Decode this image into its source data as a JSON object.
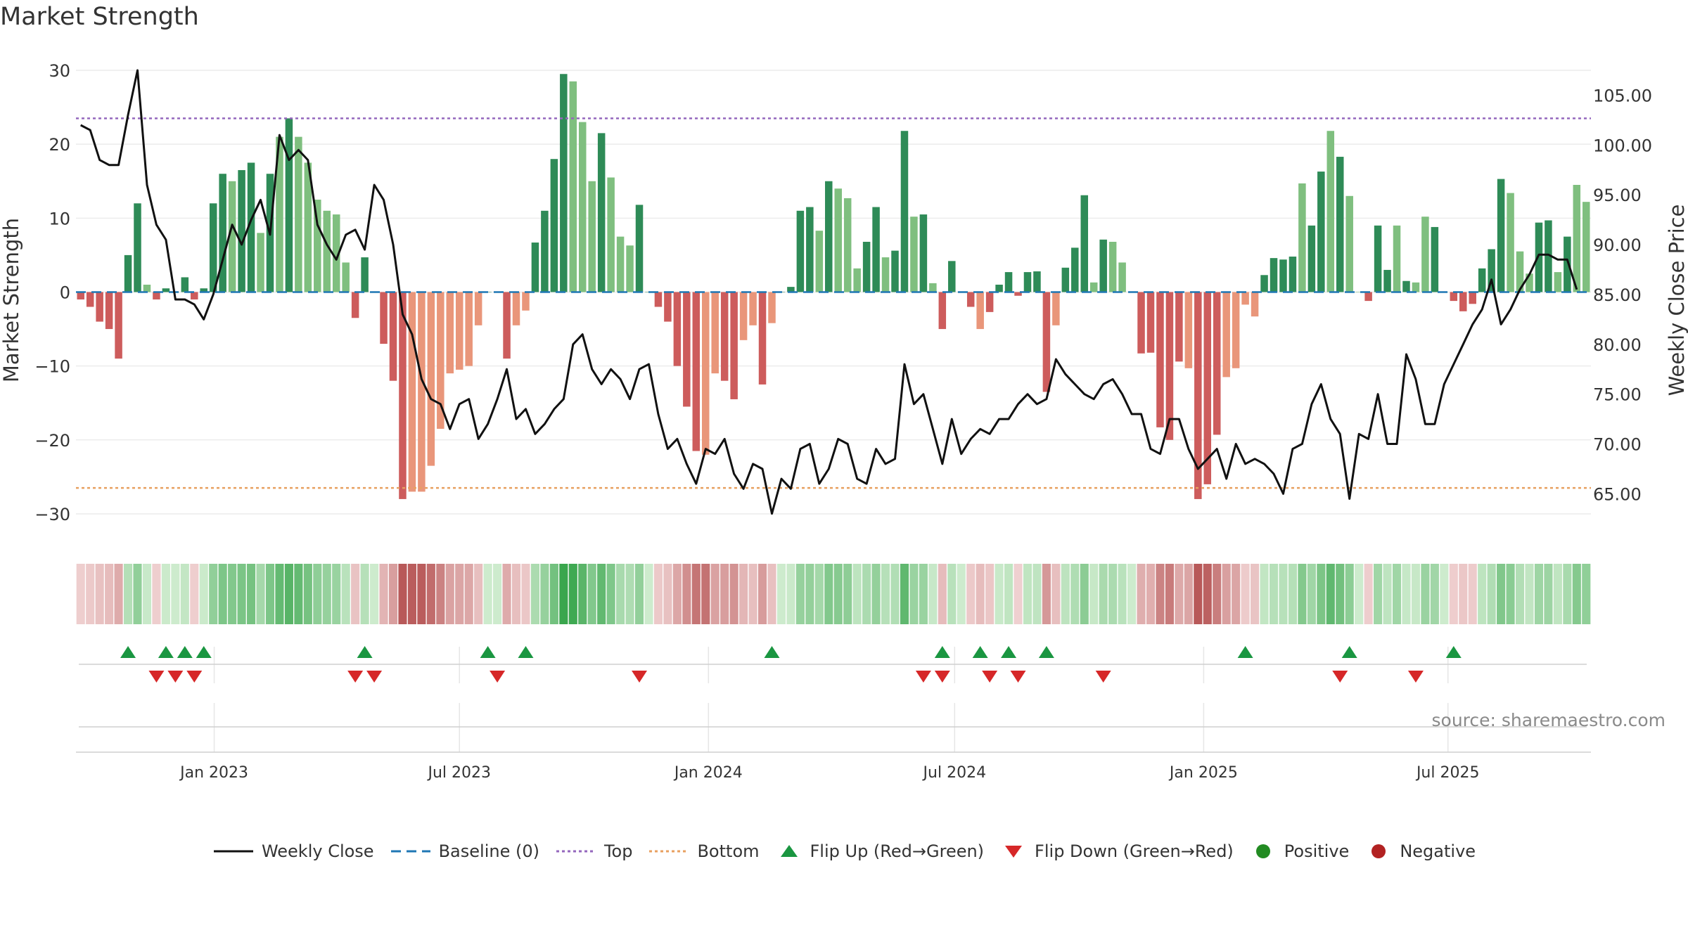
{
  "title": "Market Strength",
  "source": "source: sharemaestro.com",
  "colors": {
    "pos_dark": "#2e8b57",
    "pos_light": "#7fbf7f",
    "neg_dark": "#cd5c5c",
    "neg_light": "#e9967a",
    "price": "#111111",
    "baseline": "#1f77b4",
    "top": "#9467bd",
    "bottom": "#e8a060",
    "flip_up": "#1a9641",
    "flip_down": "#d62728"
  },
  "chart_data": {
    "type": "bar+line",
    "title": "Market Strength",
    "ylabel": "Market Strength",
    "y2label": "Weekly Close Price",
    "ylim": [
      -32,
      30
    ],
    "y2lim": [
      61.5,
      107.5
    ],
    "yticks": [
      30,
      20,
      10,
      0,
      -10,
      -20,
      -30
    ],
    "ytick_labels": [
      "30",
      "20",
      "10",
      "0",
      "−10",
      "−20",
      "−30"
    ],
    "y2ticks": [
      105,
      100,
      95,
      90,
      85,
      80,
      75,
      70,
      65
    ],
    "y2tick_labels": [
      "105.00",
      "100.00",
      "95.00",
      "90.00",
      "85.00",
      "80.00",
      "75.00",
      "70.00",
      "65.00"
    ],
    "x_start": "2022-09-26",
    "x_end": "2025-09-29",
    "xticks": [
      {
        "label": "Jan 2023",
        "week": 14.1
      },
      {
        "label": "Jul 2023",
        "week": 40.0
      },
      {
        "label": "Jan 2024",
        "week": 66.3
      },
      {
        "label": "Jul 2024",
        "week": 92.3
      },
      {
        "label": "Jan 2025",
        "week": 118.6
      },
      {
        "label": "Jul 2025",
        "week": 144.4
      }
    ],
    "top_line": 23.5,
    "bottom_line": -26.5,
    "strength": [
      -1,
      -2,
      -4,
      -5,
      -9,
      5,
      12,
      1,
      -1,
      0.5,
      0,
      2,
      -1,
      0.5,
      12,
      16,
      15,
      16.5,
      17.5,
      8,
      16,
      21,
      23.5,
      21,
      17.5,
      12.5,
      11,
      10.5,
      4,
      -3.5,
      4.7,
      0,
      -7,
      -12,
      -28,
      -27,
      -27,
      -23.5,
      -18.5,
      -11,
      -10.5,
      -10,
      -4.5,
      0,
      0,
      -9,
      -4.5,
      -2.5,
      6.7,
      11,
      18,
      29.5,
      28.5,
      23,
      15,
      21.5,
      15.5,
      7.5,
      6.3,
      11.8,
      0,
      -2,
      -4,
      -10,
      -15.5,
      -21.5,
      -22,
      -11,
      -12,
      -14.5,
      -6.5,
      -4.5,
      -12.5,
      -4.2,
      0,
      0.7,
      11,
      11.5,
      8.3,
      15,
      14,
      12.7,
      3.2,
      6.8,
      11.5,
      4.7,
      5.6,
      21.8,
      10.2,
      10.5,
      1.2,
      -5,
      4.2,
      0,
      -2,
      -5,
      -2.7,
      1,
      2.7,
      -0.5,
      2.7,
      2.8,
      -13.5,
      -4.5,
      3.3,
      6,
      13.1,
      1.3,
      7.1,
      6.8,
      4,
      0,
      -8.3,
      -8.2,
      -18.3,
      -20,
      -9.4,
      -10.3,
      -28,
      -26,
      -19.3,
      -11.5,
      -10.3,
      -1.7,
      -3.3,
      2.3,
      4.6,
      4.4,
      4.8,
      14.7,
      9,
      16.3,
      21.8,
      18.3,
      13,
      0,
      -1.2,
      9,
      3,
      9,
      1.5,
      1.3,
      10.2,
      8.8,
      0,
      -1.2,
      -2.6,
      -1.6,
      3.2,
      5.8,
      15.3,
      13.4,
      5.5,
      2.5,
      9.4,
      9.7,
      2.7,
      7.5,
      14.5,
      12.2
    ],
    "bar_shade": [
      "d",
      "d",
      "d",
      "d",
      "d",
      "d",
      "d",
      "l",
      "d",
      "d",
      "d",
      "d",
      "d",
      "d",
      "d",
      "d",
      "l",
      "d",
      "d",
      "l",
      "d",
      "l",
      "d",
      "l",
      "l",
      "l",
      "l",
      "l",
      "l",
      "d",
      "d",
      "d",
      "d",
      "d",
      "d",
      "l",
      "l",
      "l",
      "l",
      "l",
      "l",
      "l",
      "l",
      "d",
      "d",
      "d",
      "l",
      "l",
      "d",
      "d",
      "d",
      "d",
      "l",
      "l",
      "l",
      "d",
      "l",
      "l",
      "l",
      "d",
      "d",
      "d",
      "d",
      "d",
      "d",
      "d",
      "l",
      "l",
      "d",
      "d",
      "l",
      "l",
      "d",
      "l",
      "d",
      "d",
      "d",
      "d",
      "l",
      "d",
      "l",
      "l",
      "l",
      "d",
      "d",
      "l",
      "d",
      "d",
      "l",
      "d",
      "l",
      "d",
      "d",
      "d",
      "d",
      "l",
      "d",
      "d",
      "d",
      "d",
      "d",
      "d",
      "d",
      "l",
      "d",
      "d",
      "d",
      "l",
      "d",
      "l",
      "l",
      "d",
      "d",
      "d",
      "d",
      "d",
      "d",
      "l",
      "d",
      "d",
      "d",
      "l",
      "l",
      "l",
      "l",
      "d",
      "d",
      "d",
      "d",
      "l",
      "d",
      "d",
      "l",
      "d",
      "l",
      "l",
      "d",
      "d",
      "d",
      "l",
      "d",
      "l",
      "l",
      "d",
      "l",
      "d",
      "d",
      "d",
      "d",
      "d",
      "d",
      "l",
      "l",
      "l",
      "d",
      "d",
      "l",
      "d",
      "l"
    ],
    "weekly_close": [
      102,
      101.5,
      98.5,
      98,
      98,
      103,
      107.5,
      96,
      92,
      90.5,
      84.5,
      84.5,
      84,
      82.5,
      85,
      88.5,
      92,
      90,
      92.5,
      94.5,
      91,
      101,
      98.5,
      99.5,
      98.5,
      92,
      90,
      88.5,
      91,
      91.5,
      89.5,
      96,
      94.5,
      90,
      83,
      81,
      76.5,
      74.5,
      74,
      71.5,
      74,
      74.5,
      70.5,
      72,
      74.5,
      77.5,
      72.5,
      73.5,
      71,
      72,
      73.5,
      74.5,
      80,
      81,
      77.5,
      76,
      77.5,
      76.5,
      74.5,
      77.5,
      78,
      73,
      69.5,
      70.5,
      68,
      66,
      69.5,
      69,
      70.5,
      67,
      65.5,
      68,
      67.5,
      63,
      66.5,
      65.5,
      69.5,
      70,
      66,
      67.5,
      70.5,
      70,
      66.5,
      66,
      69.5,
      68,
      68.5,
      78,
      74,
      75,
      71.5,
      68,
      72.5,
      69,
      70.5,
      71.5,
      71,
      72.5,
      72.5,
      74,
      75,
      74,
      74.5,
      78.5,
      77,
      76,
      75,
      74.5,
      76,
      76.5,
      75,
      73,
      73,
      69.5,
      69,
      72.5,
      72.5,
      69.5,
      67.5,
      68.5,
      69.5,
      66.5,
      70,
      68,
      68.5,
      68,
      67,
      65,
      69.5,
      70,
      74,
      76,
      72.5,
      71,
      64.5,
      71,
      70.5,
      75,
      70,
      70,
      79,
      76.5,
      72,
      72,
      76,
      78,
      80,
      82,
      83.5,
      86.5,
      82,
      83.5,
      85.5,
      87,
      89,
      89,
      88.5,
      88.5,
      85.5
    ],
    "flip_up_weeks": [
      5,
      9,
      11,
      13,
      30,
      43,
      47,
      73,
      91,
      95,
      98,
      102,
      123,
      134,
      145
    ],
    "flip_down_weeks": [
      8,
      10,
      12,
      29,
      31,
      44,
      59,
      89,
      91,
      96,
      99,
      108,
      133,
      141
    ],
    "legend": {
      "weekly_close": "Weekly Close",
      "baseline": "Baseline (0)",
      "top": "Top",
      "bottom": "Bottom",
      "flip_up": "Flip Up (Red→Green)",
      "flip_down": "Flip Down (Green→Red)",
      "positive": "Positive",
      "negative": "Negative"
    }
  }
}
